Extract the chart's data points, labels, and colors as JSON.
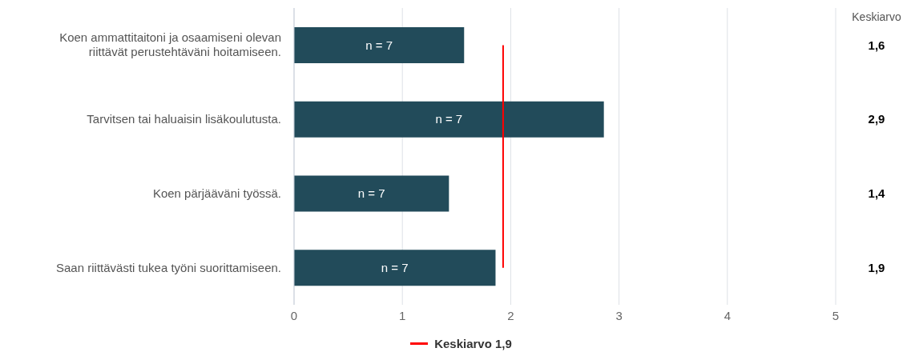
{
  "chart_data": {
    "type": "bar",
    "orientation": "horizontal",
    "categories": [
      "Koen ammattitaitoni ja osaamiseni olevan riittävät perustehtäväni hoitamiseen.",
      "Tarvitsen tai haluaisin lisäkoulutusta.",
      "Koen pärjääväni työssä.",
      "Saan riittävästi tukea työni suorittamiseen."
    ],
    "values": [
      1.57,
      2.86,
      1.43,
      1.86
    ],
    "value_labels": [
      "1,6",
      "2,9",
      "1,4",
      "1,9"
    ],
    "color": "#224b5a",
    "xlim": [
      0,
      5
    ],
    "xticks": [
      0,
      1,
      2,
      3,
      4,
      5
    ],
    "grid": "x",
    "legend": "bottom",
    "y2label": "Keskiarvo",
    "annotations": [
      "n = 7",
      "n = 7",
      "n = 7",
      "n = 7"
    ],
    "ref_lines": [
      {
        "axis": "x",
        "value": 1.93,
        "label": "Keskiarvo 1,9",
        "color": "#ff0000"
      }
    ]
  }
}
